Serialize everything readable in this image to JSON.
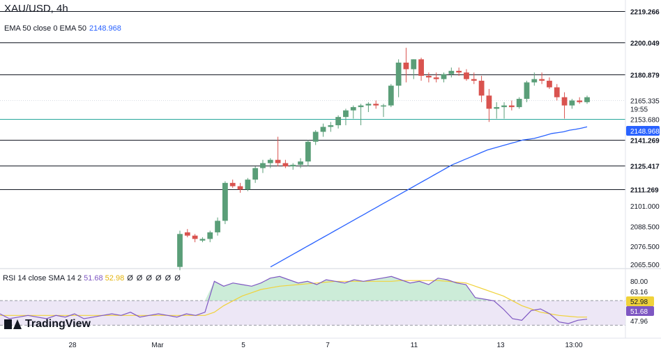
{
  "header": {
    "title": "XAU/USD, 4h",
    "ema_label": "EMA 50 close 0 EMA 50",
    "ema_value": "2148.968"
  },
  "rsi_legend": {
    "label": "RSI 14 close SMA 14 2",
    "rsi_value": "51.68",
    "sma_value": "52.98",
    "extra": "Ø Ø Ø Ø Ø Ø"
  },
  "branding": {
    "logo_text": "TradingView"
  },
  "colors": {
    "up": "#5a9e78",
    "down": "#d9534f",
    "ema": "#2962ff",
    "rsi": "#7e57c2",
    "rsi_sma": "#f0d23a",
    "rsi_band": "#ede7f6",
    "hline": "#131722",
    "support": "#26a69a"
  },
  "chart_data": {
    "type": "candlestick",
    "title": "XAU/USD, 4h",
    "y_range": [
      2063,
      2226
    ],
    "price_ticks": [
      "2101.000",
      "2088.500",
      "2076.500",
      "2065.500"
    ],
    "horizontal_levels": [
      {
        "value": 2219.266,
        "label": "2219.266"
      },
      {
        "value": 2200.049,
        "label": "2200.049"
      },
      {
        "value": 2180.879,
        "label": "2180.879"
      },
      {
        "value": 2141.269,
        "label": "2141.269"
      },
      {
        "value": 2125.417,
        "label": "2125.417"
      },
      {
        "value": 2111.269,
        "label": "2111.269"
      }
    ],
    "support_level": {
      "value": 2153.68,
      "label": "2153.680"
    },
    "current_price": {
      "value": 2165.335,
      "label": "2165.335",
      "countdown": "19:55"
    },
    "ema_marker": {
      "value": 2148.968,
      "label": "2148.968"
    },
    "x_labels": [
      "28",
      "Mar",
      "5",
      "7",
      "11",
      "13",
      "13:00"
    ],
    "candles": [
      [
        2064,
        2086,
        2062,
        2084
      ],
      [
        2085,
        2087,
        2082,
        2083
      ],
      [
        2083,
        2084,
        2079,
        2081
      ],
      [
        2080,
        2082,
        2079,
        2081
      ],
      [
        2081,
        2086,
        2079,
        2085
      ],
      [
        2085,
        2094,
        2083,
        2092
      ],
      [
        2092,
        2116,
        2090,
        2115
      ],
      [
        2115,
        2117,
        2112,
        2113
      ],
      [
        2113,
        2115,
        2109,
        2111
      ],
      [
        2111,
        2118,
        2110,
        2117
      ],
      [
        2117,
        2125,
        2115,
        2124
      ],
      [
        2124,
        2129,
        2121,
        2127
      ],
      [
        2127,
        2130,
        2124,
        2129
      ],
      [
        2129,
        2143,
        2125,
        2127
      ],
      [
        2127,
        2129,
        2124,
        2125
      ],
      [
        2125,
        2127,
        2123,
        2126
      ],
      [
        2126,
        2130,
        2124,
        2128
      ],
      [
        2128,
        2141,
        2125,
        2140
      ],
      [
        2140,
        2147,
        2138,
        2146
      ],
      [
        2146,
        2151,
        2143,
        2149
      ],
      [
        2149,
        2152,
        2146,
        2150
      ],
      [
        2150,
        2156,
        2148,
        2155
      ],
      [
        2155,
        2160,
        2150,
        2159
      ],
      [
        2159,
        2162,
        2154,
        2161
      ],
      [
        2161,
        2163,
        2150,
        2162
      ],
      [
        2162,
        2164,
        2158,
        2163
      ],
      [
        2163,
        2165,
        2160,
        2162
      ],
      [
        2162,
        2163,
        2155,
        2162
      ],
      [
        2162,
        2175,
        2161,
        2174
      ],
      [
        2174,
        2190,
        2167,
        2188
      ],
      [
        2188,
        2197,
        2176,
        2184
      ],
      [
        2184,
        2190,
        2178,
        2190
      ],
      [
        2190,
        2191,
        2177,
        2180
      ],
      [
        2180,
        2182,
        2176,
        2179
      ],
      [
        2179,
        2182,
        2176,
        2178
      ],
      [
        2178,
        2182,
        2176,
        2181
      ],
      [
        2181,
        2185,
        2179,
        2183
      ],
      [
        2183,
        2185,
        2180,
        2182
      ],
      [
        2182,
        2184,
        2177,
        2178
      ],
      [
        2178,
        2182,
        2175,
        2177
      ],
      [
        2177,
        2180,
        2164,
        2168
      ],
      [
        2168,
        2172,
        2152,
        2160
      ],
      [
        2160,
        2164,
        2154,
        2161
      ],
      [
        2161,
        2164,
        2154,
        2162
      ],
      [
        2162,
        2165,
        2159,
        2161
      ],
      [
        2161,
        2167,
        2160,
        2166
      ],
      [
        2166,
        2177,
        2164,
        2176
      ],
      [
        2176,
        2182,
        2174,
        2178
      ],
      [
        2178,
        2182,
        2175,
        2177
      ],
      [
        2177,
        2179,
        2172,
        2173
      ],
      [
        2173,
        2175,
        2165,
        2167
      ],
      [
        2167,
        2170,
        2154,
        2162
      ],
      [
        2162,
        2166,
        2160,
        2165
      ],
      [
        2165,
        2167,
        2163,
        2164
      ],
      [
        2164,
        2168,
        2163,
        2167
      ]
    ],
    "ema_series": [
      2064,
      2066,
      2068,
      2070,
      2072,
      2074,
      2076,
      2078,
      2080,
      2082,
      2084,
      2086,
      2088,
      2090,
      2092,
      2094,
      2096,
      2098,
      2100,
      2102,
      2104,
      2106,
      2108,
      2110,
      2112,
      2114,
      2116,
      2118,
      2120,
      2122,
      2124,
      2126,
      2127.5,
      2129,
      2130.5,
      2132,
      2133.5,
      2135,
      2136,
      2137,
      2138,
      2139,
      2140,
      2141,
      2141.5,
      2142,
      2143,
      2144,
      2145,
      2145.5,
      2146,
      2147,
      2147.5,
      2148.2,
      2149
    ],
    "rsi": {
      "y_range": [
        40,
        82
      ],
      "ticks": [
        "80.00",
        "63.16",
        "52.98",
        "51.68",
        "47.96"
      ],
      "band": [
        47.96,
        63.16
      ],
      "rsi_values": [
        55,
        52,
        53,
        54,
        53,
        52,
        54,
        53,
        55,
        52,
        53,
        54,
        55,
        54,
        56,
        53,
        54,
        55,
        54,
        53,
        55,
        54,
        56,
        75,
        72,
        74,
        73,
        72,
        74,
        77,
        78,
        76,
        74,
        75,
        73,
        76,
        75,
        74,
        76,
        75,
        76,
        77,
        78,
        76,
        74,
        75,
        73,
        77,
        76,
        74,
        73,
        65,
        64,
        63,
        58,
        52,
        51,
        57,
        58,
        55,
        50,
        49,
        51,
        51.68
      ],
      "sma_values": [
        54,
        54,
        54,
        54,
        54,
        54,
        54,
        54,
        54,
        54,
        54,
        54,
        54,
        54,
        54,
        54,
        54,
        54,
        54,
        54,
        54,
        54,
        54,
        56,
        60,
        63,
        66,
        68,
        70,
        71,
        72,
        72.5,
        73,
        73.5,
        74,
        74.5,
        75,
        75,
        75,
        75,
        75,
        75,
        75,
        75.5,
        75.5,
        75.5,
        75.5,
        75.5,
        75,
        74.5,
        74,
        72,
        70,
        68,
        66,
        63,
        60,
        58,
        56,
        55,
        54,
        53.5,
        53,
        52.98
      ]
    }
  }
}
